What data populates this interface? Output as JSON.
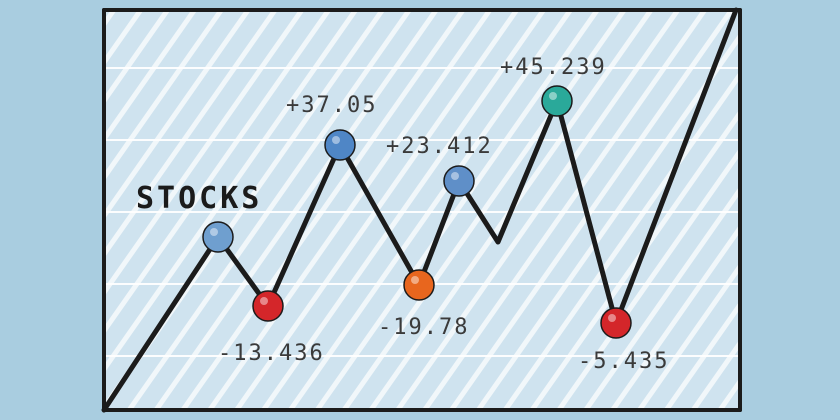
{
  "chart_data": {
    "type": "line",
    "title": "STOCKS",
    "grid": true,
    "points": [
      {
        "label": "",
        "color": "#6f9fcf"
      },
      {
        "label": "-13.436",
        "color": "#d4262a"
      },
      {
        "label": "+37.05",
        "color": "#4f86c6"
      },
      {
        "label": "-19.78",
        "color": "#e8661e"
      },
      {
        "label": "+23.412",
        "color": "#5f8fc8"
      },
      {
        "label": "+45.239",
        "color": "#2aa99a"
      },
      {
        "label": "-5.435",
        "color": "#d4262a"
      }
    ]
  }
}
